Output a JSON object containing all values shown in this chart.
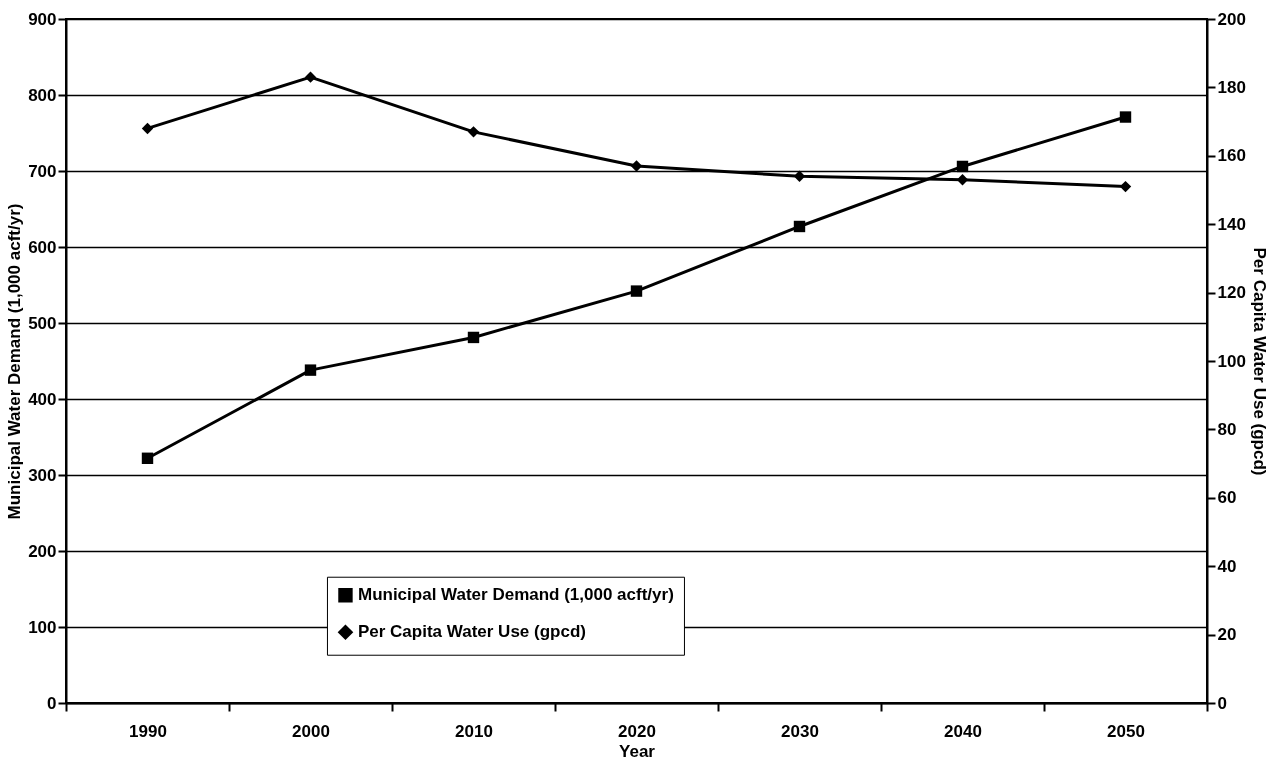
{
  "chart_data": {
    "type": "line",
    "xlabel": "Year",
    "ylabel": "Municipal Water Demand (1,000 acft/yr)",
    "y2label": "Per Capita Water Use (gpcd)",
    "categories": [
      "1990",
      "2000",
      "2010",
      "2020",
      "2030",
      "2040",
      "2050"
    ],
    "series": [
      {
        "name": "Municipal Water Demand (1,000 acft/yr)",
        "color": "#000000",
        "marker": "square",
        "values": [
          322,
          438,
          481,
          542,
          627,
          706,
          771
        ]
      },
      {
        "name": "Per Capita Water Use (gpcd)",
        "color": "#000000",
        "marker": "diamond",
        "axis": "y2",
        "values": [
          168,
          183,
          167,
          157,
          154,
          153,
          151
        ]
      }
    ],
    "ylim": [
      0,
      900
    ],
    "yticks": [
      0,
      100,
      200,
      300,
      400,
      500,
      600,
      700,
      800,
      900
    ],
    "y2lim": [
      0,
      200
    ],
    "y2ticks": [
      0,
      20,
      40,
      60,
      80,
      100,
      120,
      140,
      160,
      180,
      200
    ],
    "grid": "y",
    "legend": "bottom",
    "line_style": "solid"
  }
}
